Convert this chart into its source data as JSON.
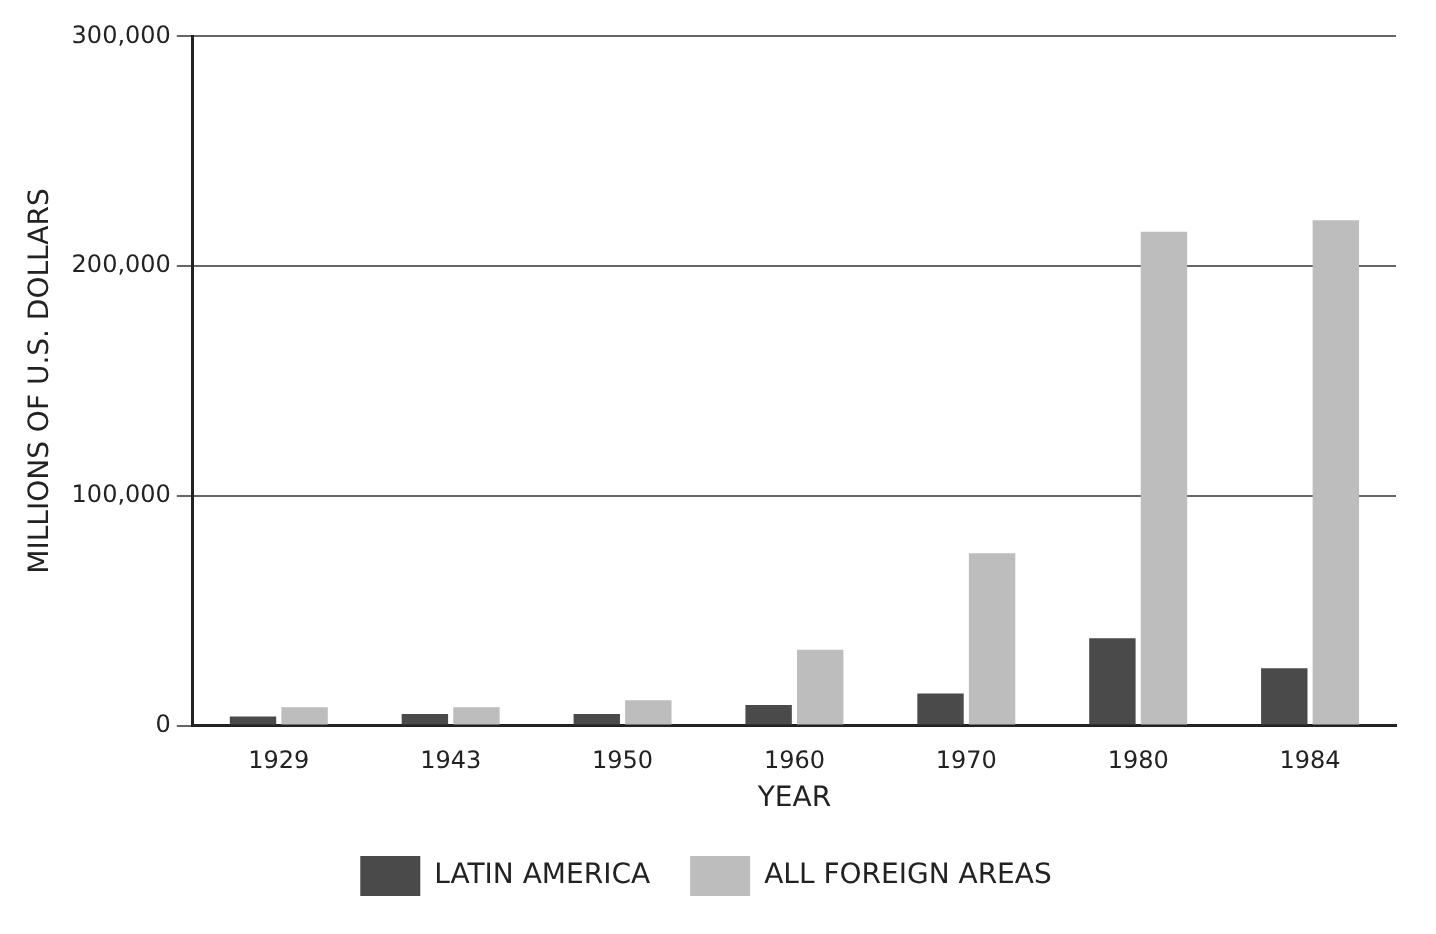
{
  "chart_data": {
    "type": "bar",
    "xlabel": "YEAR",
    "ylabel": "MILLIONS OF U.S. DOLLARS",
    "categories": [
      "1929",
      "1943",
      "1950",
      "1960",
      "1970",
      "1980",
      "1984"
    ],
    "series": [
      {
        "name": "LATIN AMERICA",
        "color": "#4a4a4a",
        "values": [
          4000,
          5000,
          5000,
          9000,
          14000,
          38000,
          25000
        ]
      },
      {
        "name": "ALL FOREIGN AREAS",
        "color": "#bdbdbd",
        "values": [
          8000,
          8000,
          11000,
          33000,
          75000,
          215000,
          220000
        ]
      }
    ],
    "ylim": [
      0,
      300000
    ],
    "yticks": [
      {
        "value": 0,
        "label": "0"
      },
      {
        "value": 100000,
        "label": "100,000"
      },
      {
        "value": 200000,
        "label": "200,000"
      },
      {
        "value": 300000,
        "label": "300,000"
      }
    ],
    "grid": "y",
    "legend": "bottom"
  }
}
